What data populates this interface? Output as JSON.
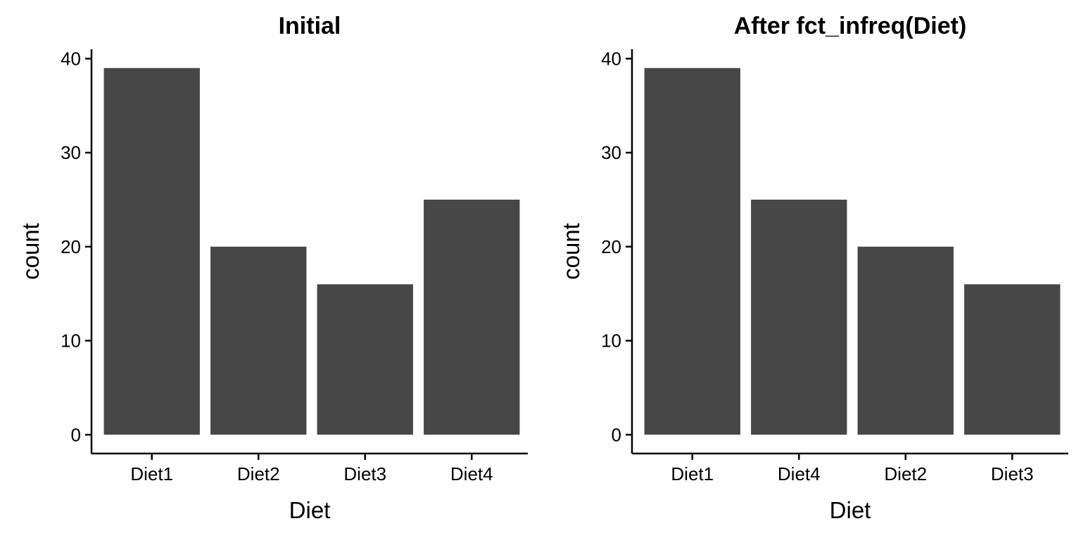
{
  "chart_data": [
    {
      "type": "bar",
      "title": "Initial",
      "xlabel": "Diet",
      "ylabel": "count",
      "categories": [
        "Diet1",
        "Diet2",
        "Diet3",
        "Diet4"
      ],
      "values": [
        39,
        20,
        16,
        25
      ],
      "yticks": [
        0,
        10,
        20,
        30,
        40
      ],
      "ylim": [
        -2,
        41
      ],
      "bar_color": "#474747",
      "grid": false,
      "legend": "none"
    },
    {
      "type": "bar",
      "title": "After fct_infreq(Diet)",
      "xlabel": "Diet",
      "ylabel": "count",
      "categories": [
        "Diet1",
        "Diet4",
        "Diet2",
        "Diet3"
      ],
      "values": [
        39,
        25,
        20,
        16
      ],
      "yticks": [
        0,
        10,
        20,
        30,
        40
      ],
      "ylim": [
        -2,
        41
      ],
      "bar_color": "#474747",
      "grid": false,
      "legend": "none"
    }
  ]
}
